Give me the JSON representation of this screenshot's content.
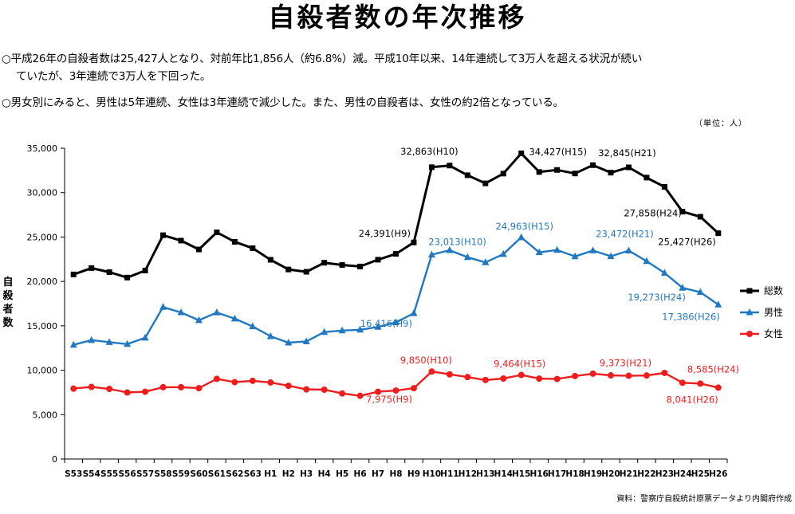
{
  "title": "自殺者数の年次推移",
  "notes": {
    "line1": "○平成26年の自殺者数は25,427人となり、対前年比1,856人（約6.8%）減。平成10年以来、14年連続して3万人を超える状況が続い",
    "line1_cont": "ていたが、3年連続で3万人を下回った。",
    "line2": "○男女別にみると、男性は5年連続、女性は3年連続で減少した。また、男性の自殺者は、女性の約2倍となっている。"
  },
  "unit": "（単位：人）",
  "source": "資料：警察庁自殺統計原票データより内閣府作成",
  "chart_data": {
    "type": "line",
    "ylabel": "自殺者数",
    "ylim": [
      0,
      35000
    ],
    "yticks": [
      "0",
      "5,000",
      "10,000",
      "15,000",
      "20,000",
      "25,000",
      "30,000",
      "35,000"
    ],
    "ytick_values": [
      0,
      5000,
      10000,
      15000,
      20000,
      25000,
      30000,
      35000
    ],
    "grid": false,
    "legend_position": "right",
    "categories": [
      "S53",
      "S54",
      "S55",
      "S56",
      "S57",
      "S58",
      "S59",
      "S60",
      "S61",
      "S62",
      "S63",
      "H1",
      "H2",
      "H3",
      "H4",
      "H5",
      "H6",
      "H7",
      "H8",
      "H9",
      "H10",
      "H11",
      "H12",
      "H13",
      "H14",
      "H15",
      "H16",
      "H17",
      "H18",
      "H19",
      "H20",
      "H21",
      "H22",
      "H23",
      "H24",
      "H25",
      "H26"
    ],
    "series": [
      {
        "name": "総数",
        "color": "#000000",
        "marker": "square",
        "values": [
          20788,
          21503,
          21048,
          20434,
          21228,
          25202,
          24596,
          23599,
          25524,
          24460,
          23742,
          22436,
          21346,
          21084,
          22104,
          21851,
          21679,
          22445,
          23104,
          24391,
          32863,
          33048,
          31957,
          31042,
          32143,
          34427,
          32325,
          32552,
          32155,
          33093,
          32249,
          32845,
          31690,
          30651,
          27858,
          27283,
          25427
        ]
      },
      {
        "name": "男性",
        "color": "#1f78c1",
        "marker": "triangle",
        "values": [
          12859,
          13386,
          13155,
          12942,
          13654,
          17116,
          16508,
          15624,
          16497,
          15802,
          14934,
          13818,
          13102,
          13242,
          14296,
          14468,
          14560,
          14874,
          15393,
          16416,
          23013,
          23512,
          22727,
          22144,
          23080,
          24963,
          23272,
          23540,
          22813,
          23478,
          22831,
          23472,
          22283,
          20955,
          19273,
          18787,
          17386
        ]
      },
      {
        "name": "女性",
        "color": "#ee1c1c",
        "marker": "circle",
        "values": [
          7929,
          8117,
          7893,
          7492,
          7574,
          8086,
          8088,
          7975,
          9027,
          8658,
          8808,
          8618,
          8244,
          7842,
          7808,
          7383,
          7119,
          7571,
          7711,
          7975,
          9850,
          9536,
          9230,
          8898,
          9063,
          9464,
          9053,
          9012,
          9342,
          9615,
          9418,
          9373,
          9407,
          9696,
          8585,
          8496,
          8041
        ]
      }
    ],
    "annotations": [
      {
        "series": 0,
        "index": 19,
        "text": "24,391(H9)"
      },
      {
        "series": 0,
        "index": 20,
        "text": "32,863(H10)"
      },
      {
        "series": 0,
        "index": 25,
        "text": "34,427(H15)"
      },
      {
        "series": 0,
        "index": 31,
        "text": "32,845(H21)"
      },
      {
        "series": 0,
        "index": 34,
        "text": "27,858(H24)"
      },
      {
        "series": 0,
        "index": 36,
        "text": "25,427(H26)"
      },
      {
        "series": 1,
        "index": 19,
        "text": "16,416(H9)"
      },
      {
        "series": 1,
        "index": 20,
        "text": "23,013(H10)"
      },
      {
        "series": 1,
        "index": 25,
        "text": "24,963(H15)"
      },
      {
        "series": 1,
        "index": 31,
        "text": "23,472(H21)"
      },
      {
        "series": 1,
        "index": 34,
        "text": "19,273(H24)"
      },
      {
        "series": 1,
        "index": 36,
        "text": "17,386(H26)"
      },
      {
        "series": 2,
        "index": 19,
        "text": "7,975(H9)"
      },
      {
        "series": 2,
        "index": 20,
        "text": "9,850(H10)"
      },
      {
        "series": 2,
        "index": 25,
        "text": "9,464(H15)"
      },
      {
        "series": 2,
        "index": 31,
        "text": "9,373(H21)"
      },
      {
        "series": 2,
        "index": 34,
        "text": "8,585(H24)"
      },
      {
        "series": 2,
        "index": 36,
        "text": "8,041(H26)"
      }
    ]
  }
}
